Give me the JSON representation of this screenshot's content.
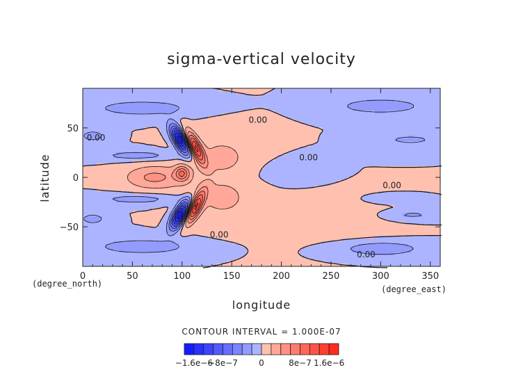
{
  "chart_data": {
    "type": "contour",
    "title": "sigma-vertical velocity",
    "xlabel": "longitude",
    "ylabel": "latitude",
    "x_unit": "(degree_east)",
    "y_unit": "(degree_north)",
    "xlim": [
      0,
      360
    ],
    "ylim": [
      -90,
      90
    ],
    "x_ticks": [
      0,
      50,
      100,
      150,
      200,
      250,
      300,
      350
    ],
    "y_ticks": [
      -50,
      0,
      50
    ],
    "contour_interval_text": "CONTOUR INTERVAL = 1.000E-07",
    "contour_labels": [
      {
        "text": "0.00",
        "lon": 4,
        "lat": 40
      },
      {
        "text": "0.00",
        "lon": 167,
        "lat": 58
      },
      {
        "text": "0.00",
        "lon": 218,
        "lat": 20
      },
      {
        "text": "0.00",
        "lon": 302,
        "lat": -8
      },
      {
        "text": "0.00",
        "lon": 128,
        "lat": -58
      },
      {
        "text": "0.00",
        "lon": 276,
        "lat": -78
      }
    ],
    "colorbar": {
      "min": -1.6e-06,
      "max": 1.6e-06,
      "levels": 16,
      "tick_labels": [
        "−1.6e−6",
        "−8e−7",
        "0",
        "8e−7",
        "1.6e−6"
      ],
      "negative_color": "#0000ff",
      "positive_color": "#ff0000",
      "neutral_color": "#ffffff"
    },
    "features": [
      {
        "type": "blue",
        "lon": 92,
        "lat": 38,
        "val": -1.6
      },
      {
        "type": "blue",
        "lon": 90,
        "lat": -38,
        "val": -1.6
      },
      {
        "type": "red",
        "lon": 100,
        "lat": 5,
        "val": 1.2
      },
      {
        "type": "red",
        "lon": 75,
        "lat": 0,
        "val": 0.5
      }
    ]
  }
}
